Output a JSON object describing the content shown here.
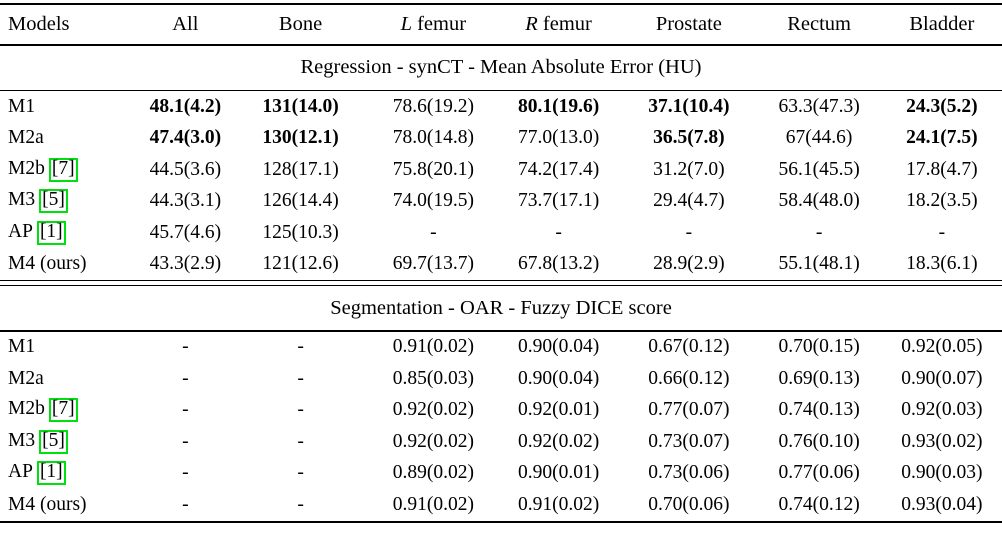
{
  "colors": {
    "cite_border": "#00df10",
    "text": "#000000",
    "background": "#ffffff"
  },
  "table": {
    "headers": [
      {
        "text": "Models"
      },
      {
        "text": "All"
      },
      {
        "text": "Bone"
      },
      {
        "it": "L",
        "text": " femur"
      },
      {
        "it": "R",
        "text": " femur"
      },
      {
        "text": "Prostate"
      },
      {
        "text": "Rectum"
      },
      {
        "text": "Bladder"
      }
    ],
    "sections": [
      {
        "title": "Regression - synCT - Mean Absolute Error (HU)",
        "rows": [
          {
            "model": "M1",
            "values": [
              "48.1(4.2)",
              "131(14.0)",
              "78.6(19.2)",
              "80.1(19.6)",
              "37.1(10.4)",
              "63.3(47.3)",
              "24.3(5.2)"
            ],
            "bold": [
              true,
              true,
              false,
              true,
              true,
              false,
              true
            ]
          },
          {
            "model": "M2a",
            "values": [
              "47.4(3.0)",
              "130(12.1)",
              "78.0(14.8)",
              "77.0(13.0)",
              "36.5(7.8)",
              "67(44.6)",
              "24.1(7.5)"
            ],
            "bold": [
              true,
              true,
              false,
              false,
              true,
              false,
              true
            ]
          },
          {
            "model": "M2b",
            "cite": "7",
            "values": [
              "44.5(3.6)",
              "128(17.1)",
              "75.8(20.1)",
              "74.2(17.4)",
              "31.2(7.0)",
              "56.1(45.5)",
              "17.8(4.7)"
            ]
          },
          {
            "model": "M3",
            "cite": "5",
            "values": [
              "44.3(3.1)",
              "126(14.4)",
              "74.0(19.5)",
              "73.7(17.1)",
              "29.4(4.7)",
              "58.4(48.0)",
              "18.2(3.5)"
            ]
          },
          {
            "model": "AP",
            "cite": "1",
            "values": [
              "45.7(4.6)",
              "125(10.3)",
              "-",
              "-",
              "-",
              "-",
              "-"
            ]
          },
          {
            "model": "M4 (ours)",
            "values": [
              "43.3(2.9)",
              "121(12.6)",
              "69.7(13.7)",
              "67.8(13.2)",
              "28.9(2.9)",
              "55.1(48.1)",
              "18.3(6.1)"
            ]
          }
        ]
      },
      {
        "title": "Segmentation - OAR - Fuzzy DICE score",
        "rows": [
          {
            "model": "M1",
            "values": [
              "-",
              "-",
              "0.91(0.02)",
              "0.90(0.04)",
              "0.67(0.12)",
              "0.70(0.15)",
              "0.92(0.05)"
            ]
          },
          {
            "model": "M2a",
            "values": [
              "-",
              "-",
              "0.85(0.03)",
              "0.90(0.04)",
              "0.66(0.12)",
              "0.69(0.13)",
              "0.90(0.07)"
            ]
          },
          {
            "model": "M2b",
            "cite": "7",
            "values": [
              "-",
              "-",
              "0.92(0.02)",
              "0.92(0.01)",
              "0.77(0.07)",
              "0.74(0.13)",
              "0.92(0.03)"
            ]
          },
          {
            "model": "M3",
            "cite": "5",
            "values": [
              "-",
              "-",
              "0.92(0.02)",
              "0.92(0.02)",
              "0.73(0.07)",
              "0.76(0.10)",
              "0.93(0.02)"
            ]
          },
          {
            "model": "AP",
            "cite": "1",
            "values": [
              "-",
              "-",
              "0.89(0.02)",
              "0.90(0.01)",
              "0.73(0.06)",
              "0.77(0.06)",
              "0.90(0.03)"
            ]
          },
          {
            "model": "M4 (ours)",
            "values": [
              "-",
              "-",
              "0.91(0.02)",
              "0.91(0.02)",
              "0.70(0.06)",
              "0.74(0.12)",
              "0.93(0.04)"
            ]
          }
        ]
      }
    ]
  }
}
